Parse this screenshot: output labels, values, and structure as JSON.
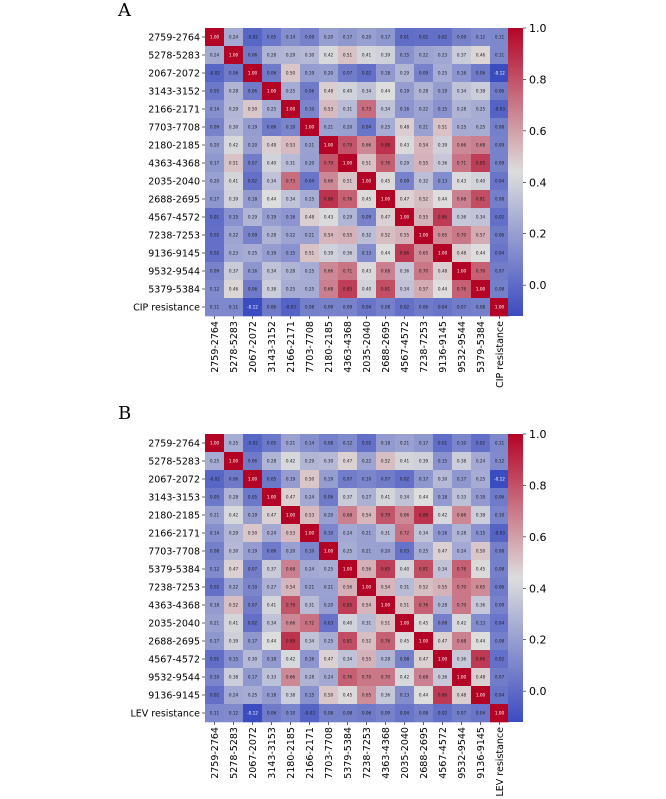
{
  "colors": {
    "low": "#3b4cc0",
    "mid": "#dddddd",
    "high": "#b40426"
  },
  "chart_data": [
    {
      "type": "heatmap",
      "panel_label": "A",
      "title": "",
      "labels": [
        "2759-2764",
        "5278-5283",
        "2067-2072",
        "3143-3152",
        "2166-2171",
        "7703-7708",
        "2180-2185",
        "4363-4368",
        "2035-2040",
        "2688-2695",
        "4567-4572",
        "7238-7253",
        "9136-9145",
        "9532-9544",
        "5379-5384",
        "CIP resistance"
      ],
      "matrix": [
        [
          1.0,
          0.24,
          -0.02,
          0.05,
          0.14,
          0.09,
          0.2,
          0.17,
          0.2,
          0.17,
          0.01,
          0.02,
          0.02,
          0.09,
          0.12,
          0.11
        ],
        [
          0.24,
          1.0,
          0.06,
          0.28,
          0.29,
          0.3,
          0.42,
          0.51,
          0.41,
          0.39,
          0.15,
          0.22,
          0.23,
          0.37,
          0.46,
          0.11
        ],
        [
          -0.02,
          0.06,
          1.0,
          0.06,
          0.5,
          0.19,
          0.2,
          0.07,
          0.02,
          0.18,
          0.29,
          0.09,
          0.25,
          0.16,
          0.06,
          -0.12
        ],
        [
          0.05,
          0.28,
          0.06,
          1.0,
          0.25,
          0.06,
          0.48,
          0.4,
          0.34,
          0.44,
          0.19,
          0.28,
          0.19,
          0.34,
          0.38,
          0.06
        ],
        [
          0.14,
          0.29,
          0.5,
          0.25,
          1.0,
          0.1,
          0.53,
          0.31,
          0.73,
          0.34,
          0.16,
          0.22,
          0.15,
          0.28,
          0.25,
          -0.03
        ],
        [
          0.09,
          0.3,
          0.19,
          0.06,
          0.1,
          1.0,
          0.21,
          0.2,
          0.04,
          0.25,
          0.48,
          0.21,
          0.51,
          0.25,
          0.25,
          0.08
        ],
        [
          0.2,
          0.42,
          0.2,
          0.48,
          0.53,
          0.21,
          1.0,
          0.79,
          0.66,
          0.88,
          0.43,
          0.54,
          0.39,
          0.66,
          0.68,
          0.09
        ],
        [
          0.17,
          0.51,
          0.07,
          0.4,
          0.31,
          0.2,
          0.79,
          1.0,
          0.51,
          0.76,
          0.29,
          0.55,
          0.36,
          0.71,
          0.85,
          0.09
        ],
        [
          0.2,
          0.41,
          0.02,
          0.34,
          0.73,
          0.04,
          0.66,
          0.51,
          1.0,
          0.45,
          0.09,
          0.32,
          0.13,
          0.43,
          0.4,
          0.04
        ],
        [
          0.17,
          0.39,
          0.18,
          0.44,
          0.34,
          0.25,
          0.88,
          0.76,
          0.45,
          1.0,
          0.47,
          0.52,
          0.44,
          0.68,
          0.81,
          0.08
        ],
        [
          0.01,
          0.15,
          0.29,
          0.19,
          0.16,
          0.48,
          0.43,
          0.29,
          0.09,
          0.47,
          1.0,
          0.55,
          0.86,
          0.36,
          0.34,
          0.02
        ],
        [
          0.02,
          0.22,
          0.09,
          0.28,
          0.22,
          0.21,
          0.54,
          0.55,
          0.32,
          0.52,
          0.55,
          1.0,
          0.65,
          0.7,
          0.57,
          0.06
        ],
        [
          0.02,
          0.23,
          0.25,
          0.19,
          0.15,
          0.51,
          0.39,
          0.36,
          0.13,
          0.44,
          0.86,
          0.65,
          1.0,
          0.48,
          0.44,
          0.04
        ],
        [
          0.09,
          0.37,
          0.16,
          0.34,
          0.28,
          0.25,
          0.66,
          0.71,
          0.43,
          0.68,
          0.36,
          0.7,
          0.48,
          1.0,
          0.76,
          0.07
        ],
        [
          0.12,
          0.46,
          0.06,
          0.38,
          0.25,
          0.25,
          0.68,
          0.85,
          0.4,
          0.81,
          0.34,
          0.57,
          0.44,
          0.76,
          1.0,
          0.08
        ],
        [
          0.11,
          0.11,
          -0.12,
          0.06,
          -0.03,
          0.08,
          0.09,
          0.09,
          0.04,
          0.08,
          0.02,
          0.06,
          0.04,
          0.07,
          0.08,
          1.0
        ]
      ],
      "colorbar": {
        "min": -0.12,
        "max": 1.0,
        "ticks": [
          "1.0",
          "0.8",
          "0.6",
          "0.4",
          "0.2",
          "0.0"
        ],
        "tick_values": [
          1.0,
          0.8,
          0.6,
          0.4,
          0.2,
          0.0
        ]
      }
    },
    {
      "type": "heatmap",
      "panel_label": "B",
      "title": "",
      "labels": [
        "2759-2764",
        "5278-5283",
        "2067-2072",
        "3143-3153",
        "2180-2185",
        "2166-2171",
        "7703-7708",
        "5379-5384",
        "7238-7253",
        "4363-4368",
        "2035-2040",
        "2688-2695",
        "4567-4572",
        "9532-9544",
        "9136-9145",
        "LEV resistance"
      ],
      "matrix": [
        [
          1.0,
          0.25,
          -0.02,
          0.05,
          0.21,
          0.14,
          0.08,
          0.12,
          0.02,
          0.18,
          0.21,
          0.17,
          0.01,
          0.1,
          0.02,
          0.11
        ],
        [
          0.25,
          1.0,
          0.06,
          0.28,
          0.42,
          0.29,
          0.3,
          0.47,
          0.22,
          0.52,
          0.41,
          0.39,
          0.15,
          0.38,
          0.24,
          0.12
        ],
        [
          -0.02,
          0.06,
          1.0,
          0.05,
          0.19,
          0.5,
          0.19,
          0.07,
          0.1,
          0.07,
          0.02,
          0.17,
          0.3,
          0.17,
          0.25,
          -0.12
        ],
        [
          0.05,
          0.28,
          0.05,
          1.0,
          0.47,
          0.24,
          0.06,
          0.37,
          0.27,
          0.41,
          0.34,
          0.44,
          0.18,
          0.33,
          0.18,
          0.06
        ],
        [
          0.21,
          0.42,
          0.19,
          0.47,
          1.0,
          0.53,
          0.2,
          0.68,
          0.54,
          0.79,
          0.66,
          0.88,
          0.42,
          0.66,
          0.38,
          0.1
        ],
        [
          0.14,
          0.29,
          0.5,
          0.24,
          0.53,
          1.0,
          0.1,
          0.24,
          0.21,
          0.31,
          0.72,
          0.34,
          0.16,
          0.28,
          0.15,
          -0.03
        ],
        [
          0.08,
          0.3,
          0.19,
          0.06,
          0.2,
          0.1,
          1.0,
          0.25,
          0.21,
          0.2,
          0.03,
          0.25,
          0.47,
          0.24,
          0.5,
          0.08
        ],
        [
          0.12,
          0.47,
          0.07,
          0.37,
          0.68,
          0.24,
          0.25,
          1.0,
          0.56,
          0.85,
          0.4,
          0.81,
          0.34,
          0.76,
          0.45,
          0.08
        ],
        [
          0.02,
          0.22,
          0.1,
          0.27,
          0.54,
          0.21,
          0.21,
          0.56,
          1.0,
          0.54,
          0.31,
          0.52,
          0.55,
          0.7,
          0.65,
          0.06
        ],
        [
          0.18,
          0.52,
          0.07,
          0.41,
          0.79,
          0.31,
          0.2,
          0.85,
          0.54,
          1.0,
          0.51,
          0.76,
          0.28,
          0.7,
          0.36,
          0.09
        ],
        [
          0.21,
          0.41,
          0.02,
          0.34,
          0.66,
          0.72,
          0.03,
          0.4,
          0.31,
          0.51,
          1.0,
          0.45,
          0.08,
          0.42,
          0.13,
          0.04
        ],
        [
          0.17,
          0.39,
          0.17,
          0.44,
          0.88,
          0.34,
          0.25,
          0.81,
          0.52,
          0.76,
          0.45,
          1.0,
          0.47,
          0.68,
          0.44,
          0.08
        ],
        [
          0.01,
          0.15,
          0.3,
          0.18,
          0.42,
          0.16,
          0.47,
          0.34,
          0.55,
          0.28,
          0.08,
          0.47,
          1.0,
          0.36,
          0.86,
          0.02
        ],
        [
          0.1,
          0.38,
          0.17,
          0.33,
          0.66,
          0.28,
          0.24,
          0.76,
          0.7,
          0.7,
          0.42,
          0.68,
          0.36,
          1.0,
          0.48,
          0.07
        ],
        [
          0.02,
          0.24,
          0.25,
          0.18,
          0.38,
          0.15,
          0.5,
          0.45,
          0.65,
          0.36,
          0.13,
          0.44,
          0.86,
          0.48,
          1.0,
          0.04
        ],
        [
          0.11,
          0.12,
          -0.12,
          0.06,
          0.1,
          -0.03,
          0.08,
          0.08,
          0.06,
          0.09,
          0.04,
          0.08,
          0.02,
          0.07,
          0.04,
          1.0
        ]
      ],
      "colorbar": {
        "min": -0.12,
        "max": 1.0,
        "ticks": [
          "1.0",
          "0.8",
          "0.6",
          "0.4",
          "0.2",
          "0.0"
        ],
        "tick_values": [
          1.0,
          0.8,
          0.6,
          0.4,
          0.2,
          0.0
        ]
      }
    }
  ]
}
